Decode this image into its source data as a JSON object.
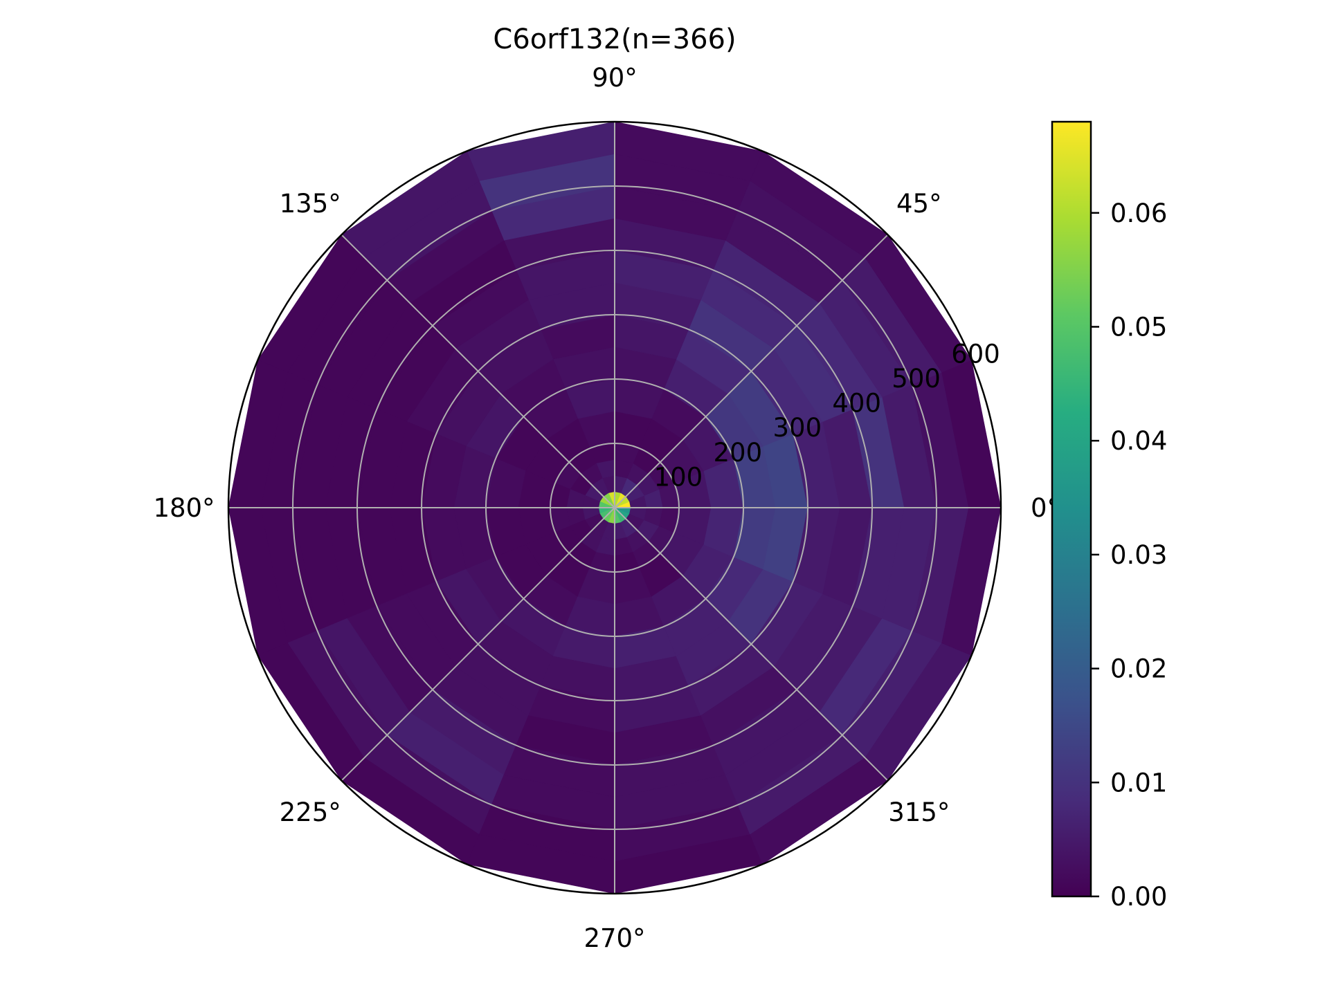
{
  "chart_data": {
    "type": "heatmap",
    "subtype": "polar",
    "title": "C6orf132(n=366)",
    "theta_ticks": [
      "0°",
      "45°",
      "90°",
      "135°",
      "180°",
      "225°",
      "270°",
      "315°"
    ],
    "r_ticks": [
      "100",
      "200",
      "300",
      "400",
      "500",
      "600"
    ],
    "r_tick_values": [
      100,
      200,
      300,
      400,
      500,
      600
    ],
    "r_range": [
      0,
      600
    ],
    "theta_bins": 16,
    "radial_bins": [
      0,
      25,
      50,
      75,
      100,
      150,
      200,
      250,
      300,
      350,
      400,
      450,
      500,
      550,
      600
    ],
    "grid": true,
    "colormap": "viridis",
    "colorbar": {
      "ticks": [
        "0.00",
        "0.01",
        "0.02",
        "0.03",
        "0.04",
        "0.05",
        "0.06"
      ],
      "tick_values": [
        0,
        0.01,
        0.02,
        0.03,
        0.04,
        0.05,
        0.06
      ],
      "range": [
        0,
        0.068
      ],
      "placement": "right"
    },
    "values_by_ring": [
      [
        0.068,
        0.062,
        0.066,
        0.06,
        0.064,
        0.055,
        0.058,
        0.05,
        0.045,
        0.048,
        0.052,
        0.056,
        0.05,
        0.046,
        0.04,
        0.036
      ],
      [
        0.004,
        0.006,
        0.008,
        0.005,
        0.003,
        0.004,
        0.005,
        0.003,
        0.004,
        0.002,
        0.003,
        0.004,
        0.005,
        0.006,
        0.003,
        0.004
      ],
      [
        0.006,
        0.004,
        0.003,
        0.002,
        0.004,
        0.002,
        0.001,
        0.003,
        0.002,
        0.001,
        0.003,
        0.004,
        0.002,
        0.003,
        0.005,
        0.003
      ],
      [
        0.003,
        0.002,
        0.001,
        0.002,
        0.001,
        0.001,
        0.002,
        0.001,
        0.002,
        0.001,
        0.001,
        0.002,
        0.001,
        0.002,
        0.003,
        0.002
      ],
      [
        0.004,
        0.003,
        0.001,
        0.001,
        0.002,
        0.001,
        0.001,
        0.001,
        0.001,
        0.001,
        0.001,
        0.003,
        0.002,
        0.001,
        0.004,
        0.004
      ],
      [
        0.007,
        0.004,
        0.002,
        0.003,
        0.004,
        0.002,
        0.001,
        0.002,
        0.001,
        0.001,
        0.002,
        0.004,
        0.003,
        0.004,
        0.006,
        0.007
      ],
      [
        0.013,
        0.011,
        0.006,
        0.003,
        0.003,
        0.002,
        0.004,
        0.003,
        0.002,
        0.003,
        0.004,
        0.005,
        0.006,
        0.006,
        0.008,
        0.012
      ],
      [
        0.014,
        0.012,
        0.008,
        0.004,
        0.002,
        0.003,
        0.003,
        0.002,
        0.002,
        0.004,
        0.003,
        0.003,
        0.004,
        0.006,
        0.01,
        0.013
      ],
      [
        0.006,
        0.008,
        0.01,
        0.005,
        0.004,
        0.003,
        0.002,
        0.001,
        0.001,
        0.002,
        0.003,
        0.002,
        0.004,
        0.005,
        0.006,
        0.005
      ],
      [
        0.005,
        0.009,
        0.008,
        0.006,
        0.004,
        0.002,
        0.001,
        0.001,
        0.001,
        0.002,
        0.003,
        0.001,
        0.002,
        0.003,
        0.005,
        0.004
      ],
      [
        0.01,
        0.008,
        0.007,
        0.004,
        0.003,
        0.001,
        0.001,
        0.001,
        0.001,
        0.002,
        0.005,
        0.002,
        0.003,
        0.004,
        0.005,
        0.006
      ],
      [
        0.005,
        0.006,
        0.003,
        0.002,
        0.008,
        0.002,
        0.001,
        0.001,
        0.001,
        0.004,
        0.006,
        0.002,
        0.003,
        0.004,
        0.008,
        0.006
      ],
      [
        0.003,
        0.005,
        0.003,
        0.002,
        0.01,
        0.004,
        0.001,
        0.001,
        0.001,
        0.003,
        0.003,
        0.001,
        0.002,
        0.005,
        0.006,
        0.005
      ],
      [
        0.001,
        0.002,
        0.002,
        0.002,
        0.006,
        0.004,
        0.001,
        0.001,
        0.001,
        0.001,
        0.001,
        0.001,
        0.001,
        0.002,
        0.004,
        0.002
      ]
    ]
  }
}
